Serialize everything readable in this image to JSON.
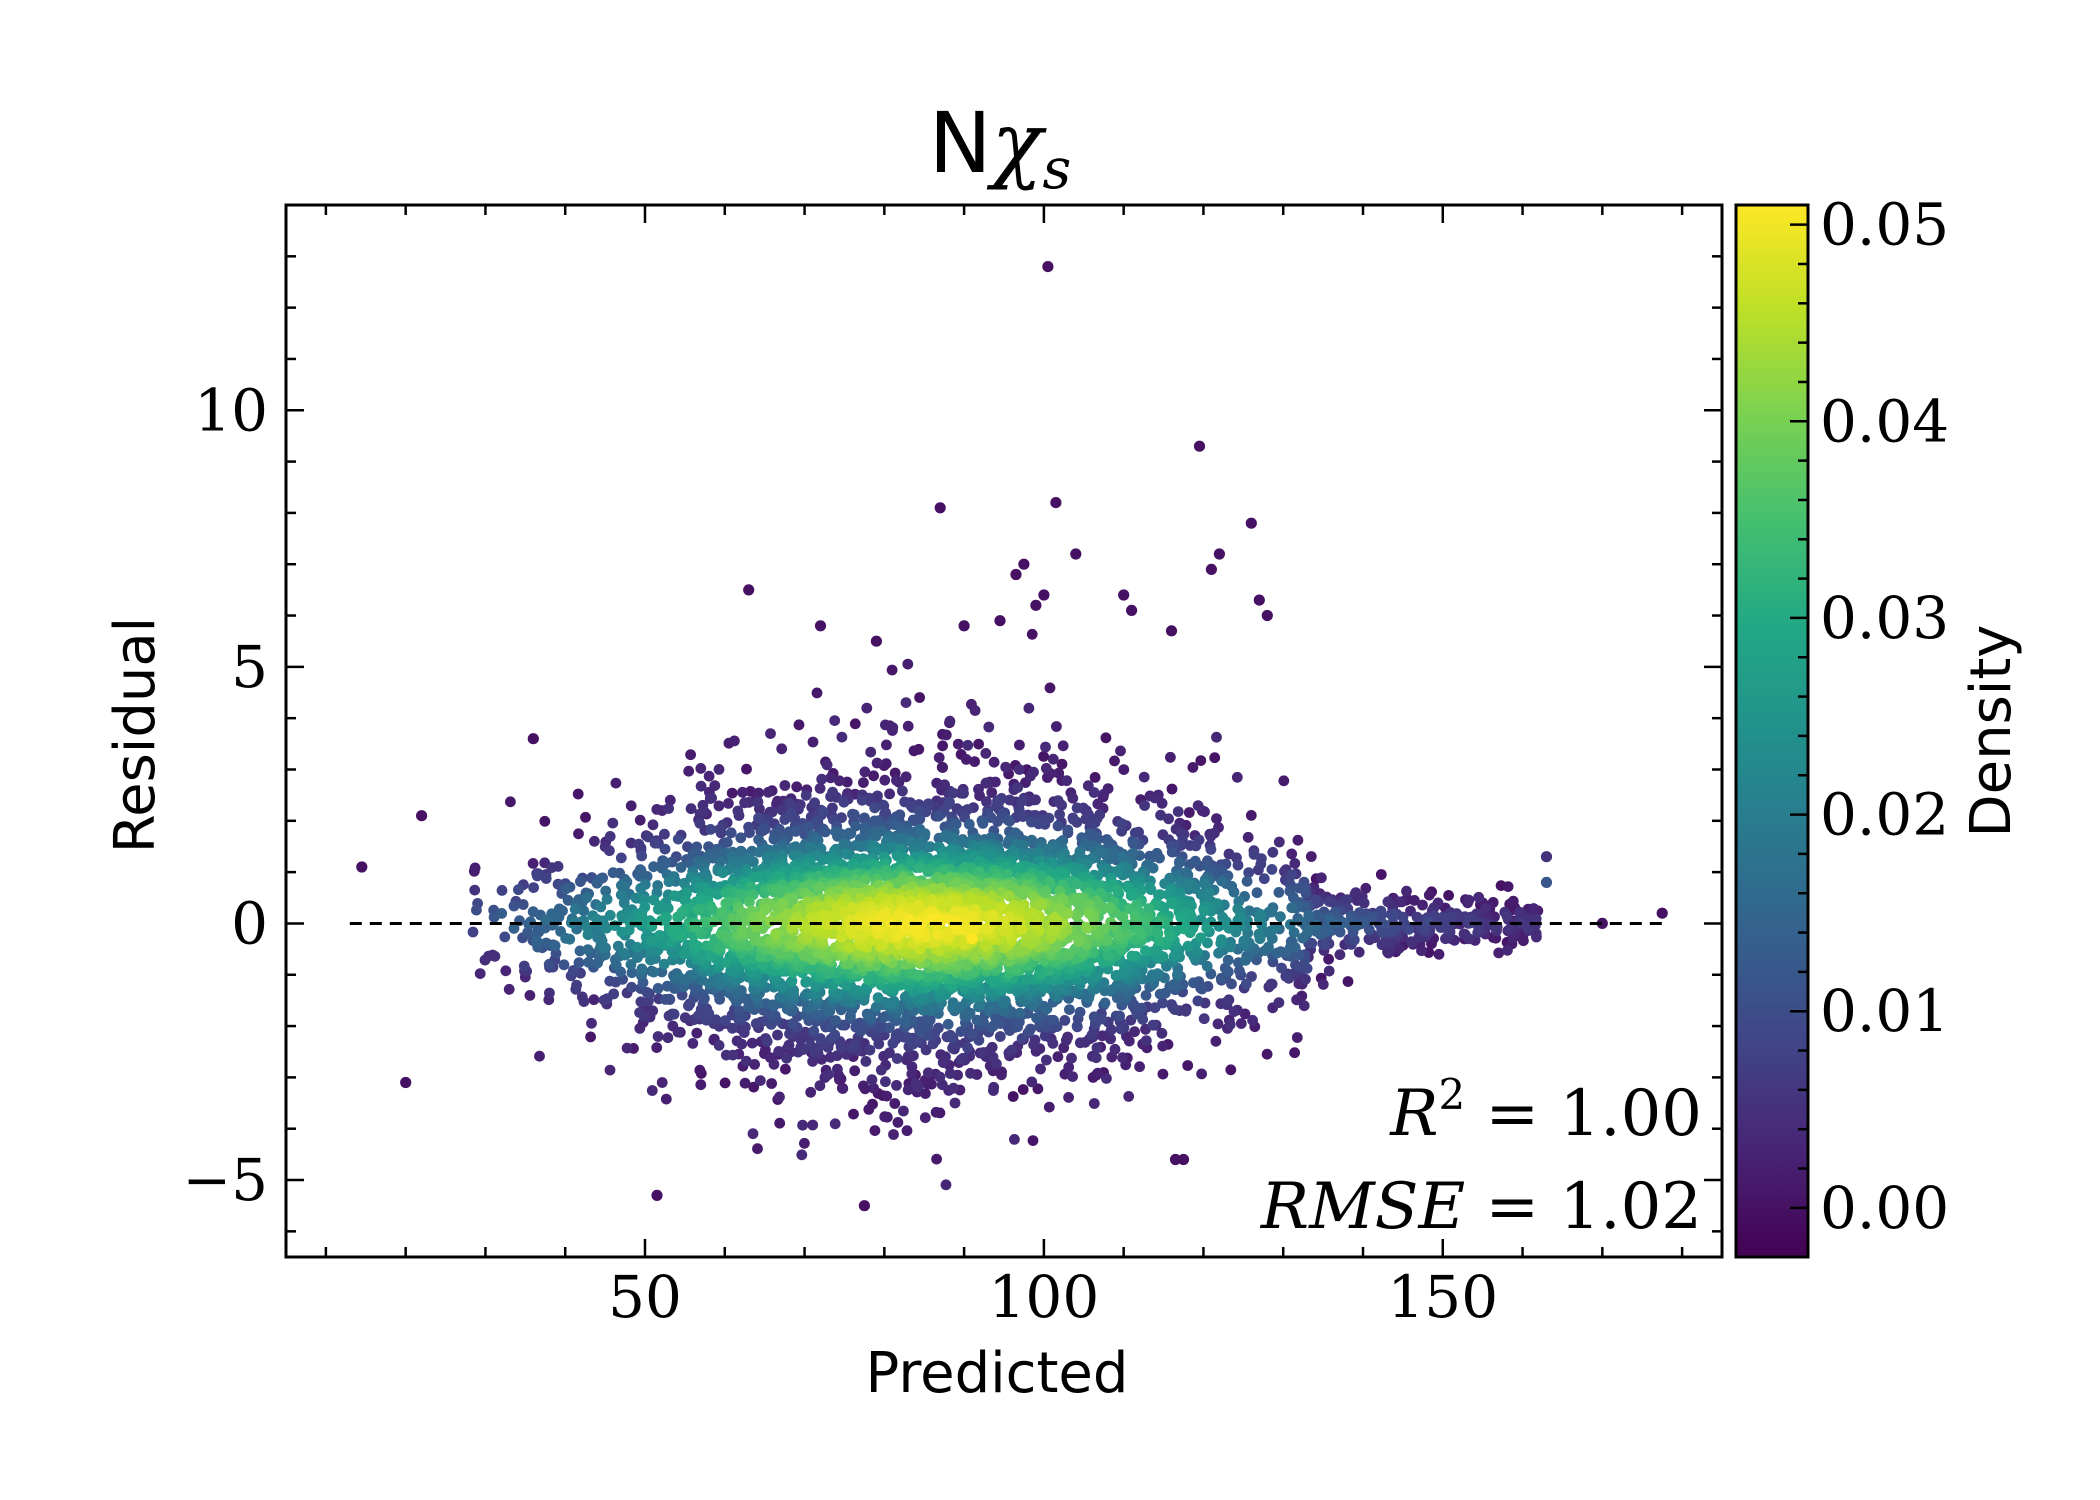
{
  "chart_data": {
    "type": "scatter",
    "title": {
      "main": "N",
      "greek": "χ",
      "sub": "s"
    },
    "xlabel": "Predicted",
    "ylabel": "Residual",
    "xlim": [
      5,
      185
    ],
    "ylim": [
      -6.5,
      14
    ],
    "xticks": [
      {
        "value": 50,
        "label": "50"
      },
      {
        "value": 100,
        "label": "100"
      },
      {
        "value": 150,
        "label": "150"
      }
    ],
    "yticks": [
      {
        "value": -5,
        "label": "−5"
      },
      {
        "value": 0,
        "label": "0"
      },
      {
        "value": 5,
        "label": "5"
      },
      {
        "value": 10,
        "label": "10"
      }
    ],
    "reference_line": {
      "y": 0,
      "x_range": [
        13,
        178
      ],
      "style": "dashed",
      "color": "#000000"
    },
    "grid": false,
    "annotations": {
      "r2": {
        "var": "R",
        "sup": "2",
        "value": "1.00"
      },
      "rmse": {
        "var": "RMSE",
        "value": "1.02"
      }
    },
    "colorbar": {
      "label": "Density",
      "colormap": "viridis",
      "range": [
        -0.0025,
        0.051
      ],
      "ticks": [
        {
          "value": 0.0,
          "label": "0.00"
        },
        {
          "value": 0.01,
          "label": "0.01"
        },
        {
          "value": 0.02,
          "label": "0.02"
        },
        {
          "value": 0.03,
          "label": "0.03"
        },
        {
          "value": 0.04,
          "label": "0.04"
        },
        {
          "value": 0.05,
          "label": "0.05"
        }
      ]
    },
    "cloud_model": {
      "description": "dense residual cloud centred on y=0",
      "x_center": 85,
      "x_sd": 22,
      "x_min": 27,
      "x_max": 165,
      "y_sd_at_center": 1.45,
      "n_points": 5200
    },
    "points": [
      {
        "x": 100.5,
        "y": 12.8,
        "d": 0.0
      },
      {
        "x": 119.5,
        "y": 9.3,
        "d": 0.0
      },
      {
        "x": 101.5,
        "y": 8.2,
        "d": 0.0
      },
      {
        "x": 87,
        "y": 8.1,
        "d": 0.0
      },
      {
        "x": 126,
        "y": 7.8,
        "d": 0.0
      },
      {
        "x": 104,
        "y": 7.2,
        "d": 0.0
      },
      {
        "x": 122,
        "y": 7.2,
        "d": 0.0
      },
      {
        "x": 97.5,
        "y": 7.0,
        "d": 0.0
      },
      {
        "x": 96.5,
        "y": 6.8,
        "d": 0.0
      },
      {
        "x": 121,
        "y": 6.9,
        "d": 0.0
      },
      {
        "x": 63,
        "y": 6.5,
        "d": 0.0
      },
      {
        "x": 100,
        "y": 6.4,
        "d": 0.0
      },
      {
        "x": 110,
        "y": 6.4,
        "d": 0.0
      },
      {
        "x": 127,
        "y": 6.3,
        "d": 0.0
      },
      {
        "x": 99,
        "y": 6.2,
        "d": 0.0
      },
      {
        "x": 111,
        "y": 6.1,
        "d": 0.0
      },
      {
        "x": 128,
        "y": 6.0,
        "d": 0.0
      },
      {
        "x": 94.5,
        "y": 5.9,
        "d": 0.0
      },
      {
        "x": 90,
        "y": 5.8,
        "d": 0.0
      },
      {
        "x": 72,
        "y": 5.8,
        "d": 0.0
      },
      {
        "x": 116,
        "y": 5.7,
        "d": 0.0
      },
      {
        "x": 79,
        "y": 5.5,
        "d": 0.0
      },
      {
        "x": 36,
        "y": 3.6,
        "d": 0.0
      },
      {
        "x": 14.5,
        "y": 1.1,
        "d": 0.0
      },
      {
        "x": 22,
        "y": 2.1,
        "d": 0.0
      },
      {
        "x": 20,
        "y": -3.1,
        "d": 0.0
      },
      {
        "x": 51.5,
        "y": -5.3,
        "d": 0.0
      },
      {
        "x": 77.5,
        "y": -5.5,
        "d": 0.0
      },
      {
        "x": 116.5,
        "y": -4.6,
        "d": 0.0
      },
      {
        "x": 117.5,
        "y": -4.6,
        "d": 0.0
      },
      {
        "x": 177.5,
        "y": 0.2,
        "d": 0.0
      },
      {
        "x": 170,
        "y": 0.0,
        "d": 0.0
      },
      {
        "x": 163,
        "y": 1.3,
        "d": 0.005
      },
      {
        "x": 163,
        "y": 0.8,
        "d": 0.012
      },
      {
        "x": 91,
        "y": -0.3,
        "d": 0.051
      }
    ]
  }
}
